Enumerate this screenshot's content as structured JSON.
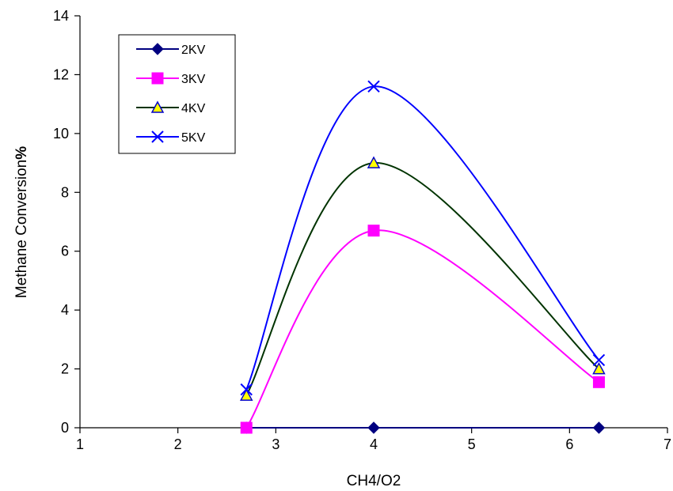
{
  "chart_data": {
    "type": "line",
    "title": "",
    "xlabel": "CH4/O2",
    "ylabel_main": "Methane Conversion",
    "ylabel_suffix": "%",
    "xlim": [
      1,
      7
    ],
    "ylim": [
      0,
      14
    ],
    "xticks": [
      1,
      2,
      3,
      4,
      5,
      6,
      7
    ],
    "yticks": [
      0,
      2,
      4,
      6,
      8,
      10,
      12,
      14
    ],
    "grid": false,
    "smooth": true,
    "legend_position": "top-left",
    "x": [
      2.7,
      4.0,
      6.3
    ],
    "series": [
      {
        "name": "2KV",
        "values": [
          0,
          0,
          0
        ],
        "color": "#000080",
        "marker": "diamond"
      },
      {
        "name": "3KV",
        "values": [
          0,
          6.7,
          1.55
        ],
        "color": "#FF00FF",
        "marker": "square"
      },
      {
        "name": "4KV",
        "values": [
          1.1,
          9.0,
          2.0
        ],
        "color": "#003300",
        "marker": "triangle",
        "marker_fill": "#FFFF00",
        "marker_edge": "#0000CC"
      },
      {
        "name": "5KV",
        "values": [
          1.3,
          11.6,
          2.3
        ],
        "color": "#0000FF",
        "marker": "x"
      }
    ]
  }
}
